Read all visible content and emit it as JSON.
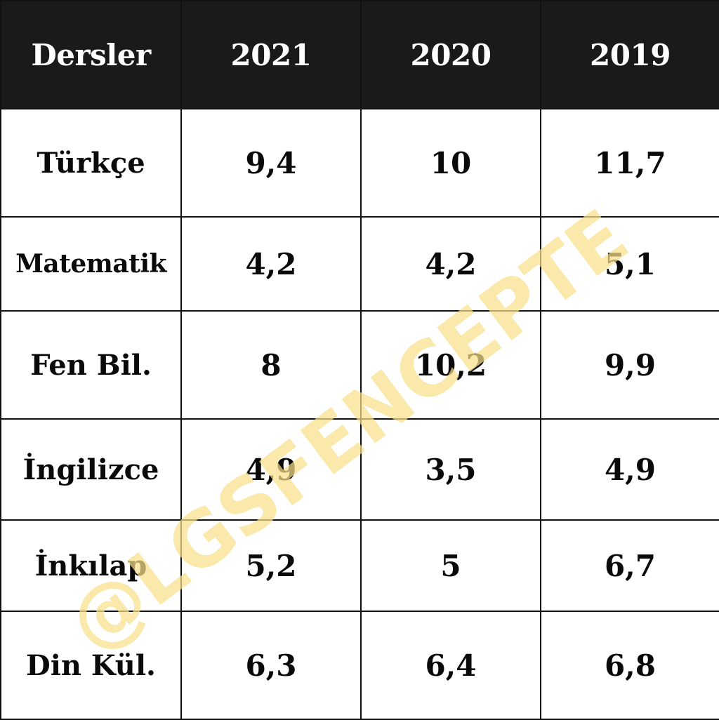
{
  "chart_data": {
    "type": "table",
    "columns": [
      "Dersler",
      "2021",
      "2020",
      "2019"
    ],
    "rows": [
      {
        "subject": "Türkçe",
        "values": [
          "9,4",
          "10",
          "11,7"
        ]
      },
      {
        "subject": "Matematik",
        "values": [
          "4,2",
          "4,2",
          "5,1"
        ]
      },
      {
        "subject": "Fen Bil.",
        "values": [
          "8",
          "10,2",
          "9,9"
        ]
      },
      {
        "subject": "İngilizce",
        "values": [
          "4,9",
          "3,5",
          "4,9"
        ]
      },
      {
        "subject": "İnkılap",
        "values": [
          "5,2",
          "5",
          "6,7"
        ]
      },
      {
        "subject": "Din Kül.",
        "values": [
          "6,3",
          "6,4",
          "6,8"
        ]
      }
    ]
  },
  "watermark": {
    "text": "@LGSFENCEPTE",
    "color": "#f8e08a"
  },
  "colors": {
    "header_bg": "#1a1a1a",
    "header_text": "#ffffff",
    "border": "#111111",
    "cell_text": "#0a0a0a"
  }
}
